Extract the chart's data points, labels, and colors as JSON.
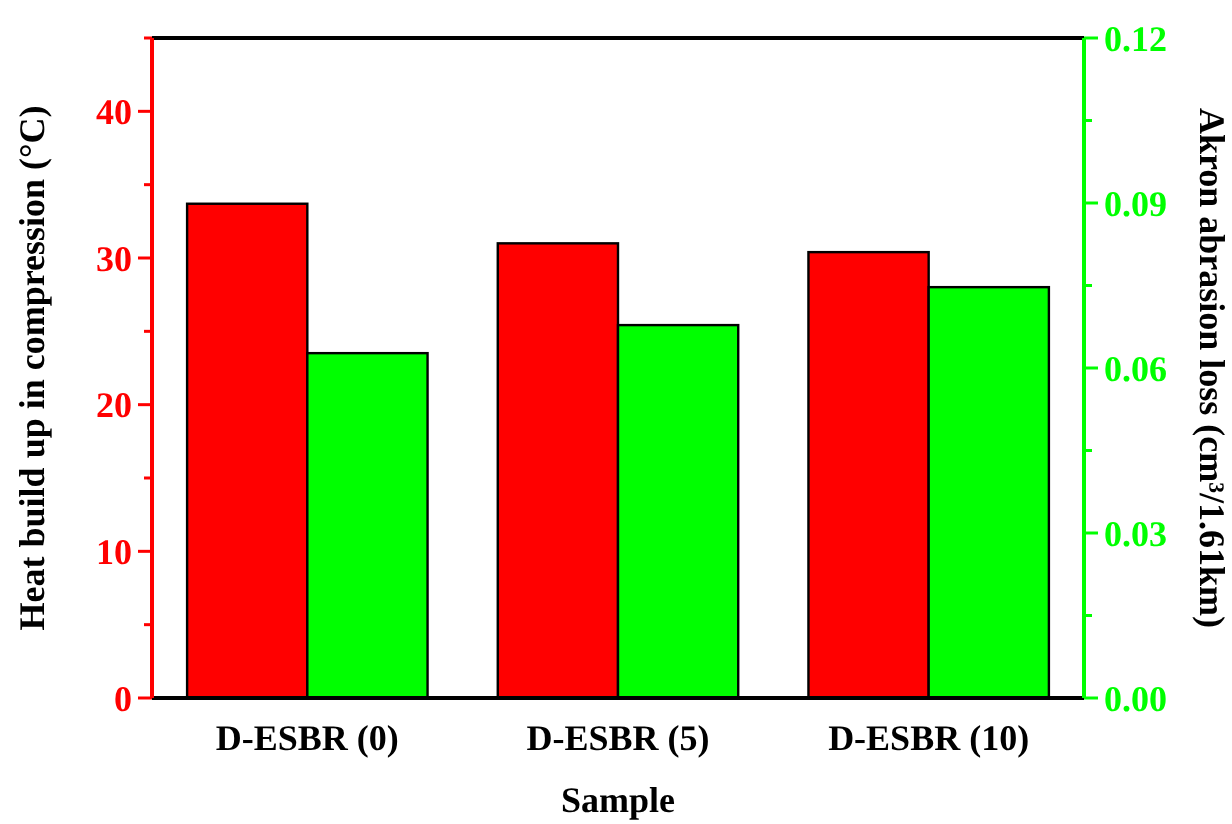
{
  "chart_data": {
    "type": "bar",
    "xlabel": "Sample",
    "ylabel": "Heat build up in compression (°C)",
    "y2label": "Akron abrasion loss (cm³/1.61km)",
    "categories": [
      "D-ESBR (0)",
      "D-ESBR (5)",
      "D-ESBR (10)"
    ],
    "series": [
      {
        "color": "#ff0000",
        "values": [
          33.7,
          31.0,
          30.4
        ]
      },
      {
        "color": "#00ff00",
        "values": [
          0.0627,
          0.0678,
          0.0747
        ],
        "axis": "y2"
      }
    ],
    "ylim": [
      0,
      45
    ],
    "yticks": [
      0,
      {
        "value": 5,
        "label": null
      },
      10,
      {
        "value": 15,
        "label": null
      },
      20,
      {
        "value": 25,
        "label": null
      },
      30,
      {
        "value": 35,
        "label": null
      },
      40,
      {
        "value": 45,
        "label": null
      }
    ],
    "y2lim": [
      0,
      0.12
    ],
    "grid": false,
    "legend": false,
    "y2ticks": [
      {
        "value": 0,
        "label": "0.00"
      },
      {
        "value": 0.015,
        "label": null
      },
      {
        "value": 0.03,
        "label": "0.03"
      },
      {
        "value": 0.045,
        "label": null
      },
      {
        "value": 0.06,
        "label": "0.06"
      },
      {
        "value": 0.075,
        "label": null
      },
      {
        "value": 0.09,
        "label": "0.09"
      },
      {
        "value": 0.105,
        "label": null
      },
      {
        "value": 0.12,
        "label": "0.12"
      }
    ]
  }
}
